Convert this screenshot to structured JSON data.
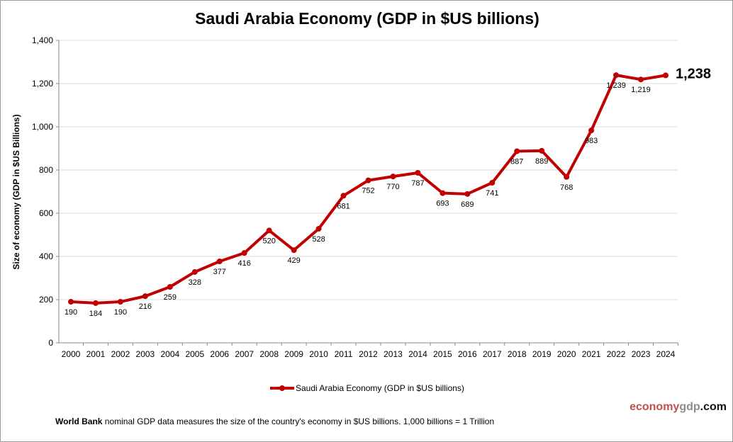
{
  "chart_data": {
    "type": "line",
    "title": "Saudi Arabia Economy (GDP in $US billions)",
    "ylabel": "Size of economy (GDP in $US Billions)",
    "xlabel": "",
    "ylim": [
      0,
      1400
    ],
    "yticks": [
      "0",
      "200",
      "400",
      "600",
      "800",
      "1,000",
      "1,200",
      "1,400"
    ],
    "grid": true,
    "legend": "bottom",
    "color": "#c00000",
    "categories": [
      "2000",
      "2001",
      "2002",
      "2003",
      "2004",
      "2005",
      "2006",
      "2007",
      "2008",
      "2009",
      "2010",
      "2011",
      "2012",
      "2013",
      "2014",
      "2015",
      "2016",
      "2017",
      "2018",
      "2019",
      "2020",
      "2021",
      "2022",
      "2023",
      "2024"
    ],
    "series": [
      {
        "name": "Saudi Arabia Economy (GDP in $US billions)",
        "values": [
          190,
          184,
          190,
          216,
          259,
          328,
          377,
          416,
          520,
          429,
          528,
          681,
          752,
          770,
          787,
          693,
          689,
          741,
          887,
          889,
          768,
          983,
          1239,
          1219,
          1238
        ]
      }
    ],
    "data_labels": [
      "190",
      "184",
      "190",
      "216",
      "259",
      "328",
      "377",
      "416",
      "520",
      "429",
      "528",
      "681",
      "752",
      "770",
      "787",
      "693",
      "689",
      "741",
      "887",
      "889",
      "768",
      "983",
      "1,239",
      "1,219",
      "1,238"
    ]
  },
  "watermark": {
    "part1": "economy",
    "part2": "gdp",
    "part3": ".com"
  },
  "footer": {
    "bold": "World Bank",
    "text": " nominal GDP data  measures the size of the country's economy in $US billions. 1,000 billions = 1 Trillion"
  }
}
